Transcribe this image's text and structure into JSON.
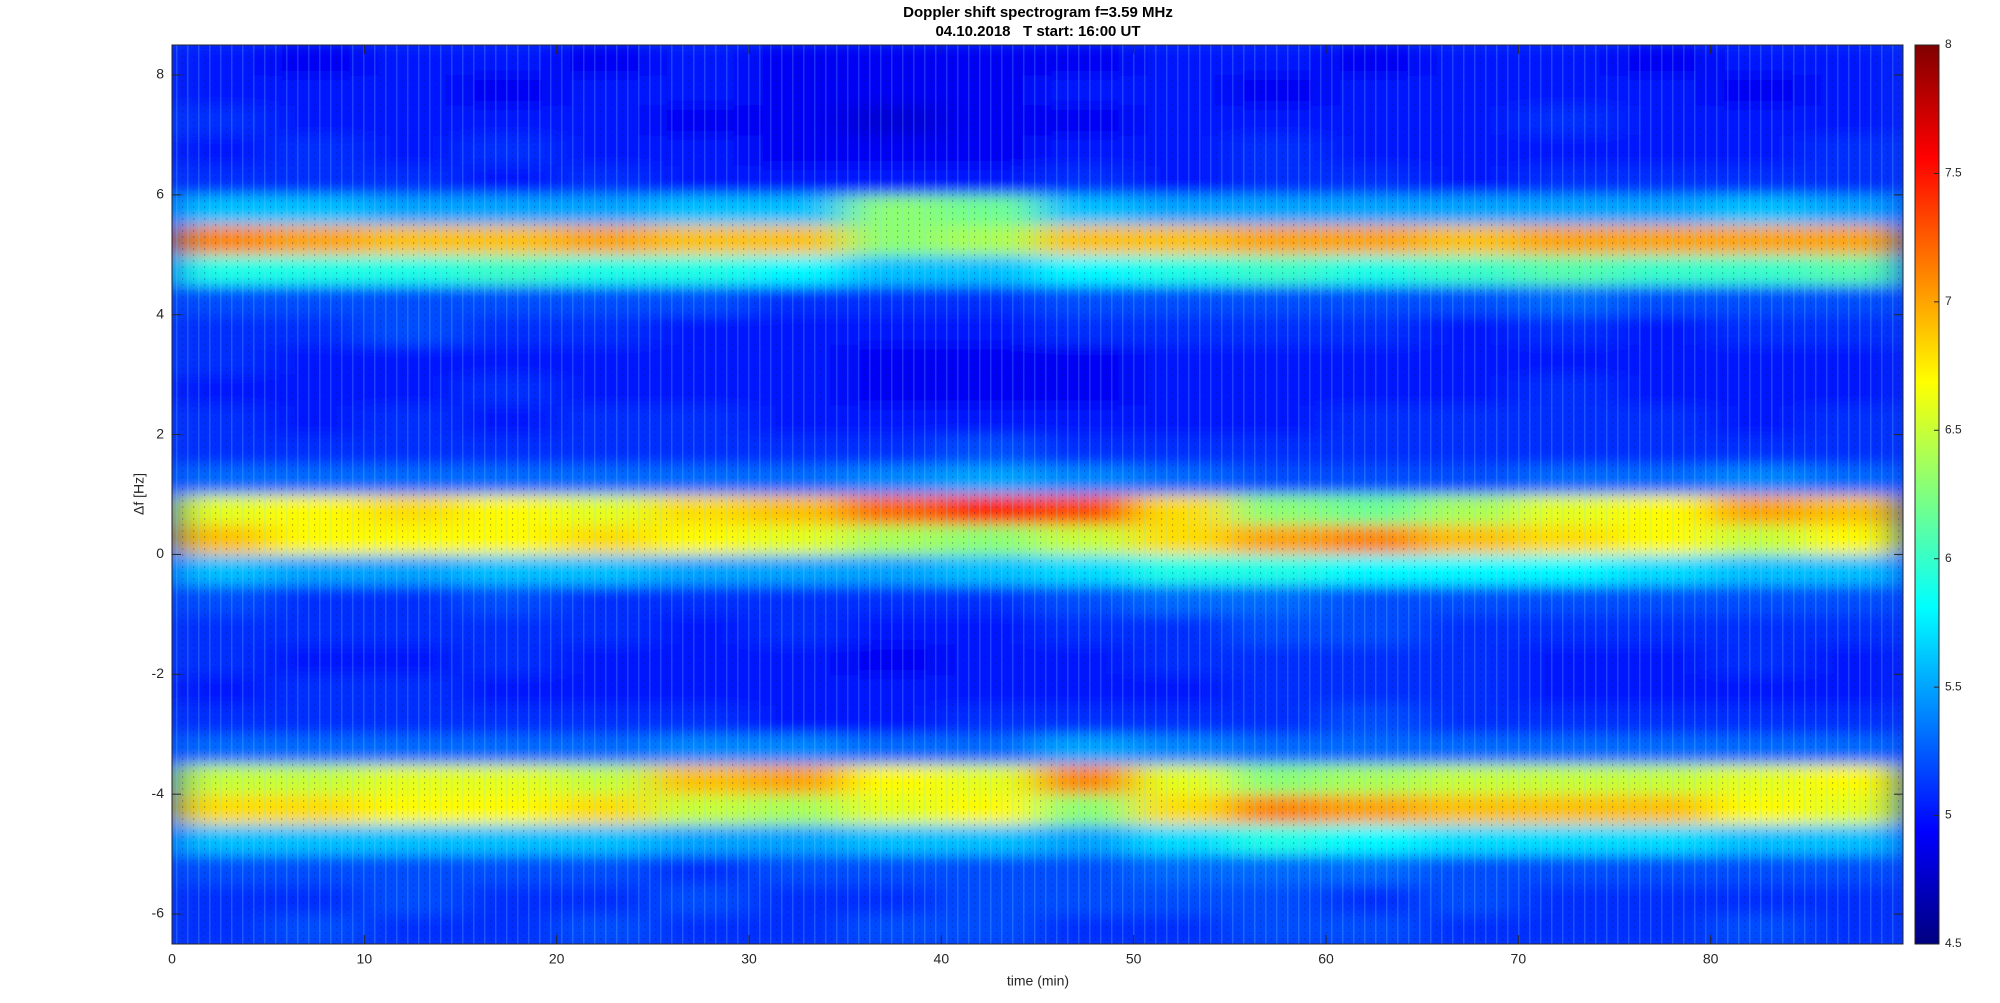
{
  "chart_data": {
    "type": "heatmap",
    "title": "Doppler shift spectrogram f=3.59 MHz",
    "subtitle": "04.10.2018   T start: 16:00 UT",
    "xlabel": "time (min)",
    "ylabel": "Δf [Hz]",
    "colormap": "jet",
    "xlim": [
      0,
      90
    ],
    "xticks": [
      0,
      10,
      20,
      30,
      40,
      50,
      60,
      70,
      80
    ],
    "ylim": [
      -6.5,
      8.5
    ],
    "yticks": [
      -6,
      -4,
      -2,
      0,
      2,
      4,
      6,
      8
    ],
    "clim": [
      4.5,
      8
    ],
    "cticks": [
      4.5,
      5,
      5.5,
      6,
      6.5,
      7,
      7.5,
      8
    ],
    "x": [
      2.5,
      7.5,
      12.5,
      17.5,
      22.5,
      27.5,
      32.5,
      37.5,
      42.5,
      47.5,
      52.5,
      57.5,
      62.5,
      67.5,
      72.5,
      77.5,
      82.5,
      87.5
    ],
    "y": [
      -6.25,
      -5.75,
      -5.25,
      -4.75,
      -4.25,
      -3.75,
      -3.25,
      -2.75,
      -2.25,
      -1.75,
      -1.25,
      -0.75,
      -0.25,
      0.25,
      0.75,
      1.25,
      1.75,
      2.25,
      2.75,
      3.25,
      3.75,
      4.25,
      4.75,
      5.25,
      5.75,
      6.25,
      6.75,
      7.25,
      7.75,
      8.25
    ],
    "z": [
      [
        5.1,
        5.2,
        5.1,
        5.1,
        5.2,
        5.1,
        5.1,
        5.2,
        5.2,
        5.1,
        5.1,
        5.2,
        5.2,
        5.1,
        5.1,
        5.1,
        5.2,
        5.1
      ],
      [
        5.1,
        5.1,
        5.2,
        5.1,
        5.1,
        5.2,
        5.1,
        5.1,
        5.2,
        5.2,
        5.2,
        5.2,
        5.1,
        5.2,
        5.1,
        5.1,
        5.1,
        5.1
      ],
      [
        5.2,
        5.2,
        5.2,
        5.2,
        5.2,
        5.1,
        5.2,
        5.2,
        5.2,
        5.2,
        5.3,
        5.3,
        5.3,
        5.2,
        5.2,
        5.2,
        5.2,
        5.2
      ],
      [
        5.6,
        5.6,
        5.6,
        5.6,
        5.6,
        5.5,
        5.5,
        5.6,
        5.6,
        5.5,
        5.7,
        5.9,
        5.8,
        5.7,
        5.7,
        5.7,
        5.6,
        5.6
      ],
      [
        6.8,
        6.8,
        6.7,
        6.7,
        6.8,
        6.5,
        6.4,
        6.6,
        6.7,
        6.3,
        6.8,
        7.1,
        7.0,
        6.9,
        6.9,
        6.9,
        6.7,
        6.6
      ],
      [
        6.5,
        6.5,
        6.6,
        6.6,
        6.5,
        6.9,
        7.0,
        6.7,
        6.6,
        7.1,
        6.6,
        6.3,
        6.4,
        6.5,
        6.5,
        6.5,
        6.6,
        6.7
      ],
      [
        5.3,
        5.3,
        5.3,
        5.3,
        5.3,
        5.4,
        5.4,
        5.3,
        5.3,
        5.5,
        5.4,
        5.3,
        5.3,
        5.3,
        5.3,
        5.3,
        5.3,
        5.3
      ],
      [
        5.1,
        5.1,
        5.1,
        5.1,
        5.1,
        5.1,
        5.0,
        5.0,
        5.1,
        5.1,
        5.1,
        5.1,
        5.2,
        5.1,
        5.1,
        5.1,
        5.1,
        5.1
      ],
      [
        5.0,
        5.1,
        5.1,
        5.0,
        5.0,
        5.0,
        5.0,
        5.0,
        5.0,
        5.0,
        5.0,
        5.1,
        5.1,
        5.1,
        5.0,
        5.0,
        5.0,
        5.0
      ],
      [
        5.1,
        5.0,
        5.0,
        5.1,
        5.0,
        5.0,
        5.0,
        4.9,
        5.0,
        5.0,
        5.1,
        5.1,
        5.1,
        5.1,
        5.0,
        5.0,
        5.1,
        5.0
      ],
      [
        5.1,
        5.1,
        5.1,
        5.1,
        5.1,
        5.0,
        5.1,
        5.0,
        5.0,
        5.1,
        5.1,
        5.2,
        5.2,
        5.1,
        5.1,
        5.1,
        5.1,
        5.1
      ],
      [
        5.2,
        5.1,
        5.1,
        5.2,
        5.1,
        5.1,
        5.1,
        5.1,
        5.1,
        5.2,
        5.3,
        5.3,
        5.2,
        5.2,
        5.2,
        5.2,
        5.2,
        5.2
      ],
      [
        5.6,
        5.5,
        5.5,
        5.6,
        5.6,
        5.5,
        5.5,
        5.5,
        5.6,
        5.7,
        5.9,
        5.9,
        5.8,
        5.8,
        5.8,
        5.7,
        5.6,
        5.6
      ],
      [
        6.9,
        6.7,
        6.7,
        6.7,
        6.8,
        6.7,
        6.6,
        6.4,
        6.3,
        6.5,
        6.8,
        7.0,
        7.1,
        6.9,
        6.8,
        6.7,
        6.5,
        6.7
      ],
      [
        6.6,
        6.7,
        6.8,
        6.7,
        6.6,
        6.8,
        6.9,
        7.2,
        7.4,
        7.3,
        6.8,
        6.3,
        6.2,
        6.4,
        6.6,
        6.7,
        7.0,
        6.9
      ],
      [
        5.3,
        5.3,
        5.3,
        5.3,
        5.3,
        5.3,
        5.3,
        5.4,
        5.5,
        5.4,
        5.3,
        5.2,
        5.2,
        5.2,
        5.3,
        5.3,
        5.4,
        5.3
      ],
      [
        5.1,
        5.1,
        5.1,
        5.1,
        5.1,
        5.1,
        5.1,
        5.1,
        5.2,
        5.1,
        5.1,
        5.1,
        5.1,
        5.1,
        5.1,
        5.1,
        5.1,
        5.1
      ],
      [
        5.1,
        5.0,
        5.1,
        5.0,
        5.1,
        5.1,
        5.0,
        5.0,
        5.0,
        5.0,
        5.0,
        5.0,
        5.1,
        5.1,
        5.1,
        5.1,
        5.0,
        5.1
      ],
      [
        5.0,
        5.0,
        5.0,
        5.1,
        5.0,
        5.0,
        5.0,
        4.9,
        4.9,
        4.9,
        5.0,
        5.0,
        5.0,
        5.0,
        5.1,
        5.0,
        5.0,
        5.0
      ],
      [
        5.1,
        5.0,
        5.0,
        5.0,
        5.0,
        5.0,
        5.0,
        4.9,
        4.9,
        4.9,
        5.0,
        5.0,
        5.0,
        5.0,
        5.0,
        5.0,
        5.0,
        5.0
      ],
      [
        5.1,
        5.1,
        5.2,
        5.1,
        5.1,
        5.0,
        5.0,
        5.0,
        5.0,
        5.1,
        5.1,
        5.1,
        5.1,
        5.0,
        5.1,
        5.0,
        5.1,
        5.1
      ],
      [
        5.2,
        5.2,
        5.2,
        5.2,
        5.2,
        5.2,
        5.1,
        5.1,
        5.1,
        5.2,
        5.2,
        5.2,
        5.2,
        5.2,
        5.3,
        5.2,
        5.2,
        5.2
      ],
      [
        5.9,
        5.9,
        5.9,
        6.0,
        5.9,
        5.9,
        5.8,
        5.6,
        5.6,
        5.8,
        5.9,
        6.0,
        5.9,
        6.0,
        6.1,
        6.0,
        6.0,
        6.1
      ],
      [
        7.1,
        7.0,
        6.9,
        6.9,
        7.0,
        6.9,
        6.9,
        6.3,
        6.4,
        6.9,
        6.9,
        7.0,
        7.0,
        6.9,
        7.0,
        7.0,
        7.0,
        7.0
      ],
      [
        5.6,
        5.6,
        5.5,
        5.5,
        5.5,
        5.6,
        5.6,
        6.3,
        6.2,
        5.6,
        5.5,
        5.5,
        5.5,
        5.5,
        5.5,
        5.5,
        5.6,
        5.5
      ],
      [
        5.1,
        5.1,
        5.1,
        5.0,
        5.1,
        5.0,
        5.0,
        5.0,
        5.0,
        5.1,
        5.0,
        5.1,
        5.1,
        5.0,
        5.1,
        5.1,
        5.1,
        5.1
      ],
      [
        5.0,
        5.1,
        5.0,
        5.1,
        5.0,
        5.0,
        4.9,
        4.9,
        4.9,
        5.0,
        5.0,
        5.1,
        5.0,
        5.0,
        5.0,
        5.0,
        5.0,
        5.1
      ],
      [
        5.1,
        5.0,
        5.0,
        5.0,
        5.0,
        4.9,
        4.9,
        4.8,
        4.9,
        4.9,
        5.0,
        5.0,
        5.0,
        5.0,
        5.1,
        5.0,
        5.0,
        5.0
      ],
      [
        5.0,
        5.0,
        5.0,
        4.9,
        5.0,
        5.0,
        4.9,
        4.9,
        4.9,
        5.0,
        5.0,
        4.9,
        5.0,
        5.0,
        5.0,
        5.0,
        4.9,
        5.0
      ],
      [
        5.0,
        4.9,
        5.0,
        5.0,
        4.9,
        5.0,
        4.9,
        4.9,
        4.9,
        4.9,
        5.0,
        5.0,
        4.9,
        5.0,
        5.0,
        4.9,
        5.0,
        5.0
      ]
    ]
  }
}
